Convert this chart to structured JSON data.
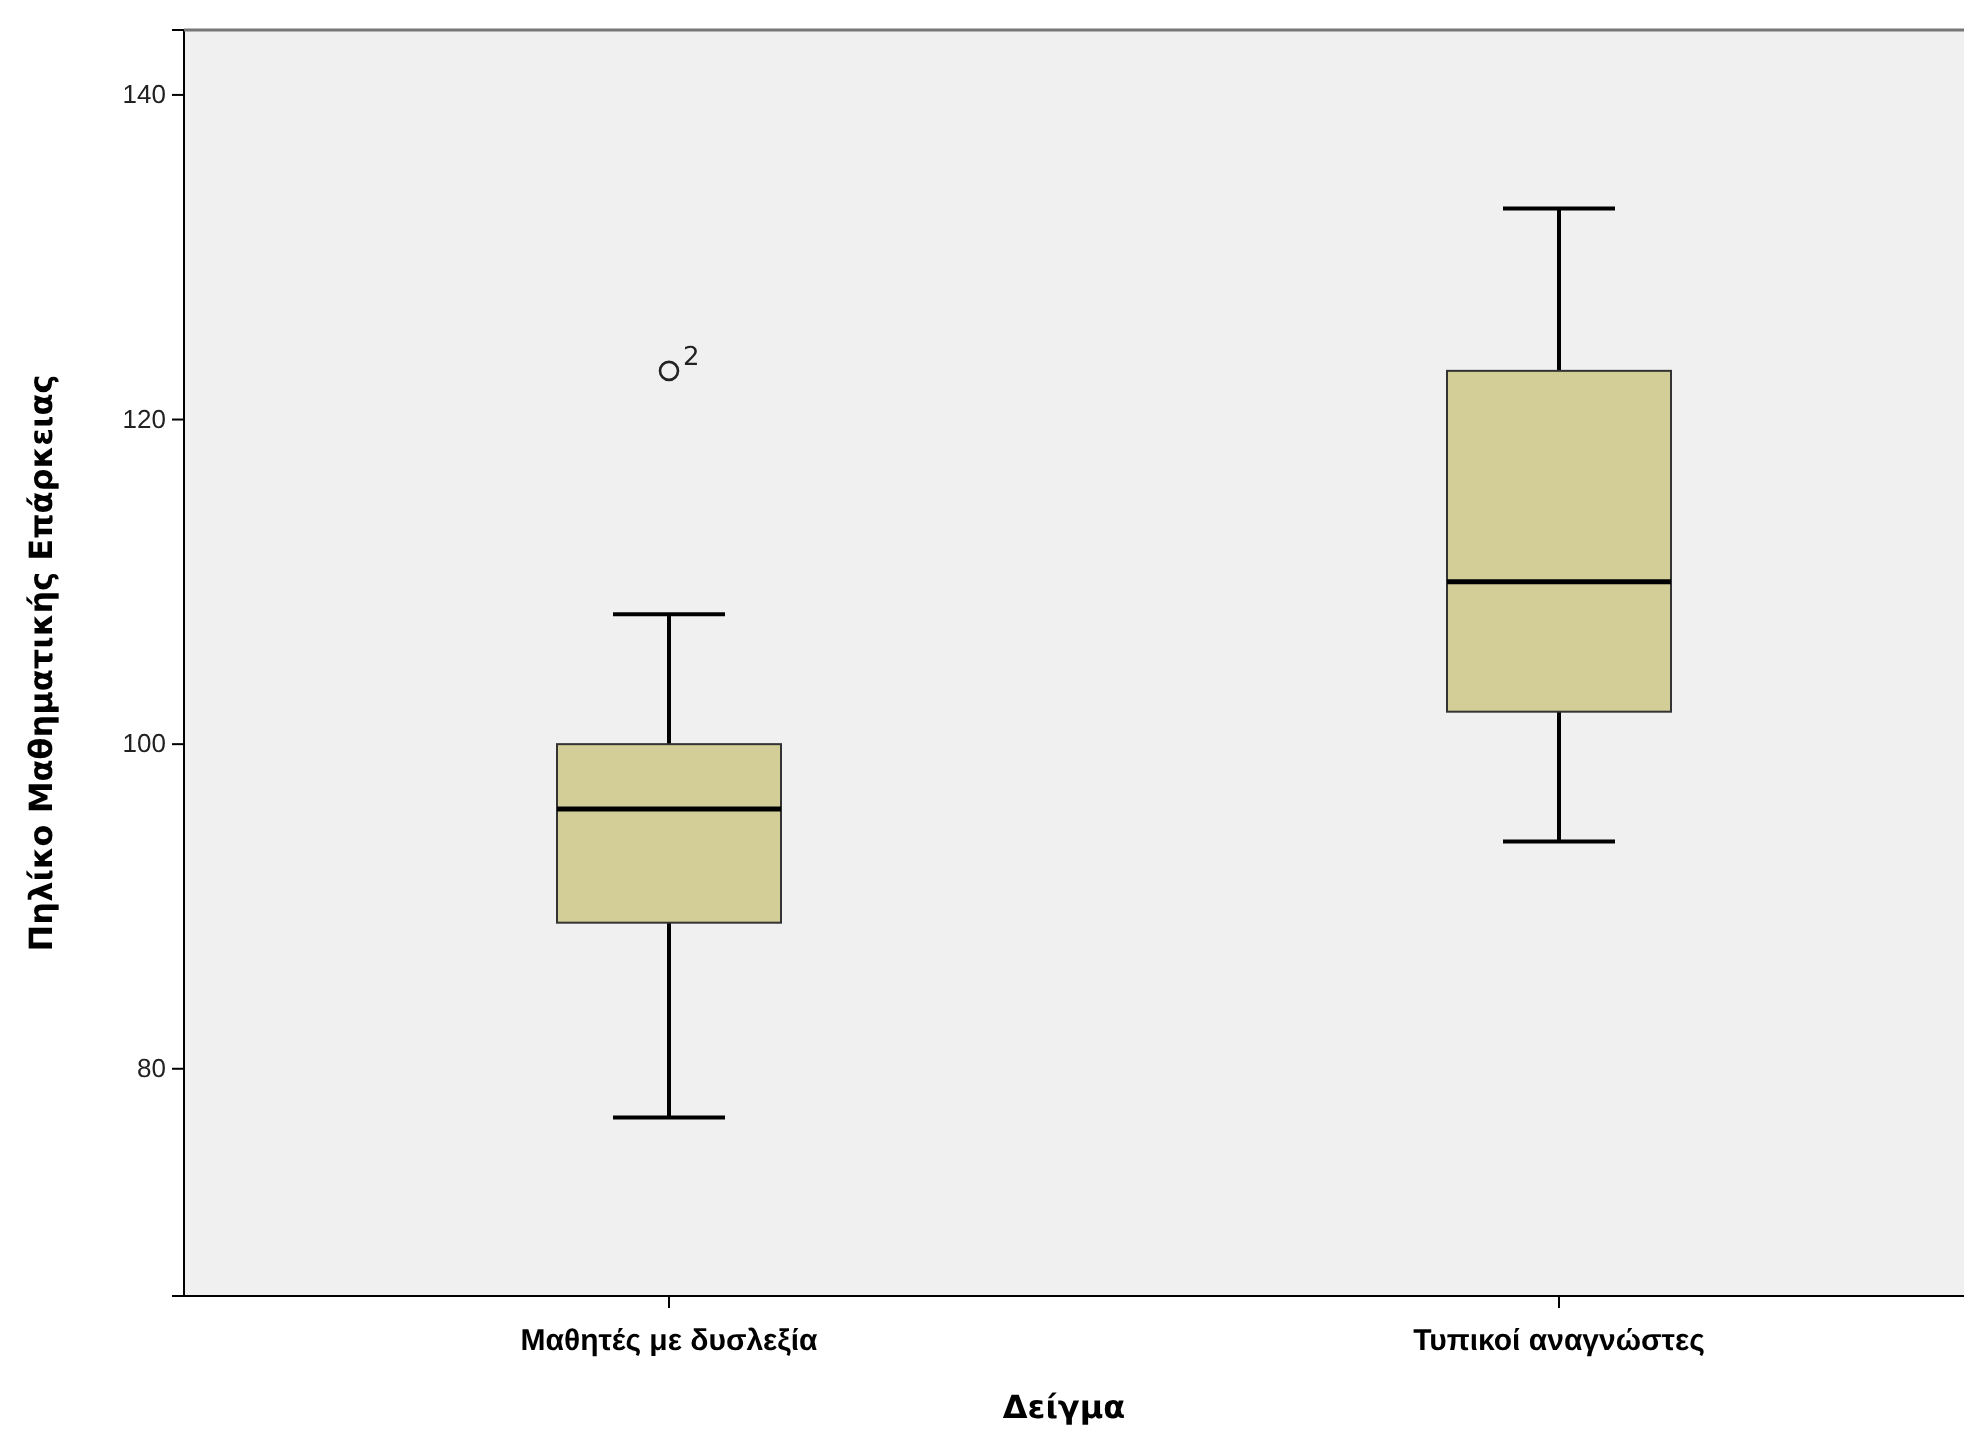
{
  "chart_data": {
    "type": "box",
    "xlabel": "Δείγμα",
    "ylabel": "Πηλίκο Μαθηματικής Επάρκειας",
    "categories": [
      "Μαθητές με δυσλεξία",
      "Τυπικοί αναγνώστες"
    ],
    "series": [
      {
        "color": "#d3ce98",
        "boxes": [
          {
            "low": 77,
            "q1": 89,
            "median": 96,
            "q3": 100,
            "high": 108,
            "outliers": [
              123
            ]
          },
          {
            "low": 94,
            "q1": 102,
            "median": 110,
            "q3": 123,
            "high": 133
          }
        ]
      }
    ],
    "ylim": [
      66,
      144
    ],
    "yticks": [
      80,
      100,
      120,
      140
    ],
    "grid": false,
    "annotations": [
      "2"
    ]
  }
}
